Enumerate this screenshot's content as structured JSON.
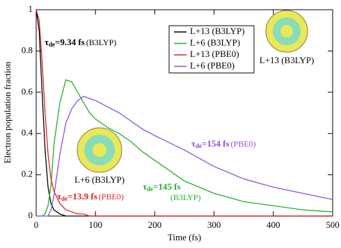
{
  "chart_data": {
    "type": "line",
    "xlabel": "Time (fs)",
    "ylabel": "Electron population fraction",
    "x": [
      0,
      5,
      10,
      15,
      20,
      25,
      30,
      40,
      50,
      60,
      70,
      80,
      90,
      100,
      120,
      140,
      160,
      180,
      200,
      250,
      300,
      350,
      400,
      450,
      500
    ],
    "series": [
      {
        "name": "L+13 (B3LYP)",
        "color": "#000000",
        "values": [
          1,
          0.9,
          0.6,
          0.32,
          0.14,
          0.06,
          0.03,
          0.01,
          0,
          0,
          0,
          0,
          0,
          0,
          0,
          0,
          0,
          0,
          0,
          0,
          0,
          0,
          0,
          0,
          0
        ]
      },
      {
        "name": "L+6 (B3LYP)",
        "color": "#22b022",
        "values": [
          0,
          0,
          0,
          0.01,
          0.05,
          0.15,
          0.35,
          0.55,
          0.66,
          0.65,
          0.6,
          0.55,
          0.5,
          0.47,
          0.43,
          0.4,
          0.36,
          0.31,
          0.27,
          0.17,
          0.11,
          0.07,
          0.05,
          0.03,
          0.02
        ]
      },
      {
        "name": "L+13 (PBE0)",
        "color": "#e02020",
        "values": [
          1,
          0.95,
          0.75,
          0.5,
          0.3,
          0.18,
          0.12,
          0.06,
          0.03,
          0.02,
          0.01,
          0.01,
          0,
          0,
          0,
          0,
          0,
          0,
          0,
          0,
          0,
          0,
          0,
          0,
          0
        ]
      },
      {
        "name": "L+6 (PBE0)",
        "color": "#8a4fe0",
        "values": [
          0,
          0,
          0,
          0,
          0,
          0.03,
          0.1,
          0.3,
          0.45,
          0.52,
          0.56,
          0.58,
          0.57,
          0.56,
          0.53,
          0.5,
          0.46,
          0.42,
          0.39,
          0.32,
          0.24,
          0.18,
          0.14,
          0.11,
          0.08
        ]
      }
    ],
    "xlim": [
      0,
      500
    ],
    "ylim": [
      0,
      1
    ],
    "xticks": [
      0,
      100,
      200,
      300,
      400,
      500
    ],
    "yticks": [
      0,
      0.2,
      0.4,
      0.6,
      0.8,
      1
    ],
    "annotations": [
      {
        "symbol": "τ",
        "subscript": "de",
        "value": "=9.34 fs",
        "method": "(B3LYP)",
        "color": "#000000"
      },
      {
        "symbol": "τ",
        "subscript": "de",
        "value": "=13.9 fs",
        "method": "(PBE0)",
        "color": "#e02020"
      },
      {
        "symbol": "τ",
        "subscript": "de",
        "value": "=145 fs",
        "method": "(B3LYP)",
        "color": "#22b022"
      },
      {
        "symbol": "τ",
        "subscript": "de",
        "value": "=154 fs",
        "method": "(PBE0)",
        "color": "#8a4fe0"
      }
    ],
    "image_labels": [
      "L+13 (B3LYP)",
      "L+6 (B3LYP)"
    ]
  }
}
